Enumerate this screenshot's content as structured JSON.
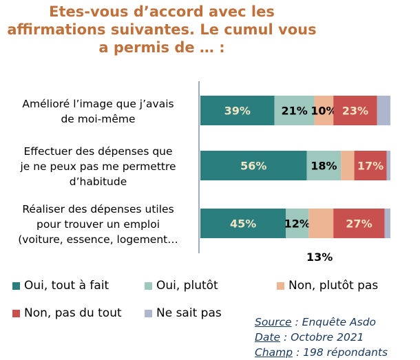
{
  "chart_data": {
    "type": "bar",
    "orientation": "horizontal",
    "stacked": true,
    "title": "Etes-vous d’accord avec les affirmations suivantes. Le cumul vous a permis de … :",
    "categories": [
      [
        "Amélioré l’image que j’avais",
        "de moi-même"
      ],
      [
        "Effectuer des dépenses que",
        "je ne peux pas me permettre",
        "d’habitude"
      ],
      [
        "Réaliser des dépenses utiles",
        "pour trouver un emploi",
        "(voiture, essence, logement…"
      ]
    ],
    "series": [
      {
        "name": "Oui, tout à fait",
        "color": "#2A7E7E",
        "values": [
          39,
          56,
          45
        ],
        "labels": [
          "39%",
          "56%",
          "45%"
        ]
      },
      {
        "name": "Oui, plutôt",
        "color": "#9EC8BE",
        "values": [
          21,
          18,
          12
        ],
        "labels": [
          "21%",
          "18%",
          "12%"
        ]
      },
      {
        "name": "Non, plutôt pas",
        "color": "#EDB594",
        "values": [
          10,
          7,
          13
        ],
        "labels": [
          "10%",
          "",
          "13%"
        ]
      },
      {
        "name": "Non, pas du tout",
        "color": "#C8504E",
        "values": [
          23,
          17,
          27
        ],
        "labels": [
          "23%",
          "17%",
          "27%"
        ]
      },
      {
        "name": "Ne sait pas",
        "color": "#AEB6CE",
        "values": [
          7,
          2,
          3
        ],
        "labels": [
          "",
          "",
          ""
        ]
      }
    ],
    "label_colors": [
      "#F3E5C4",
      "#000000",
      "#000000",
      "#F3E5C4",
      "#000000"
    ],
    "xlim": [
      0,
      100
    ],
    "legend_position": "bottom",
    "grid": false
  },
  "source": {
    "source_key": "Source",
    "source_value": " : Enquête Asdo",
    "date_key": "Date",
    "date_value": " : Octobre 2021",
    "champ_key": "Champ",
    "champ_value": " : 198 répondants"
  }
}
